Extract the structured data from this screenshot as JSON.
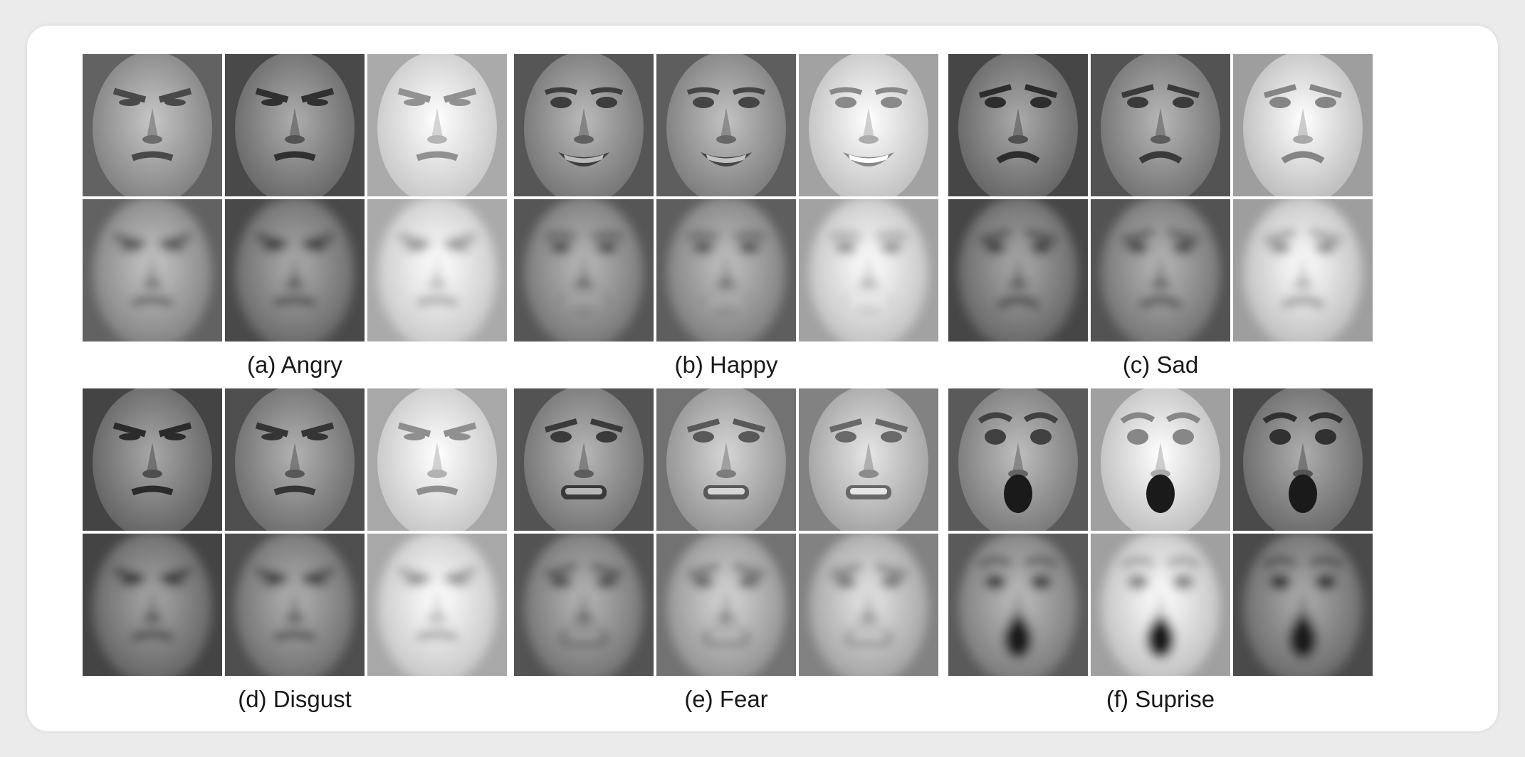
{
  "panels": [
    {
      "caption": "(a) Angry",
      "expression": "angry",
      "tones": [
        "#a8a8a8",
        "#8f8f8f",
        "#f0f0f0"
      ]
    },
    {
      "caption": "(b) Happy",
      "expression": "happy",
      "tones": [
        "#9c9c9c",
        "#a4a4a4",
        "#e8e8e8"
      ]
    },
    {
      "caption": "(c) Sad",
      "expression": "sad",
      "tones": [
        "#8c8c8c",
        "#999999",
        "#e4e4e4"
      ]
    },
    {
      "caption": "(d) Disgust",
      "expression": "disgust",
      "tones": [
        "#8a8a8a",
        "#949494",
        "#eeeeee"
      ]
    },
    {
      "caption": "(e) Fear",
      "expression": "fear",
      "tones": [
        "#999999",
        "#b8b8b8",
        "#c8c8c8"
      ]
    },
    {
      "caption": "(f) Suprise",
      "expression": "surprise",
      "tones": [
        "#a0a0a0",
        "#e6e6e6",
        "#909090"
      ]
    }
  ]
}
